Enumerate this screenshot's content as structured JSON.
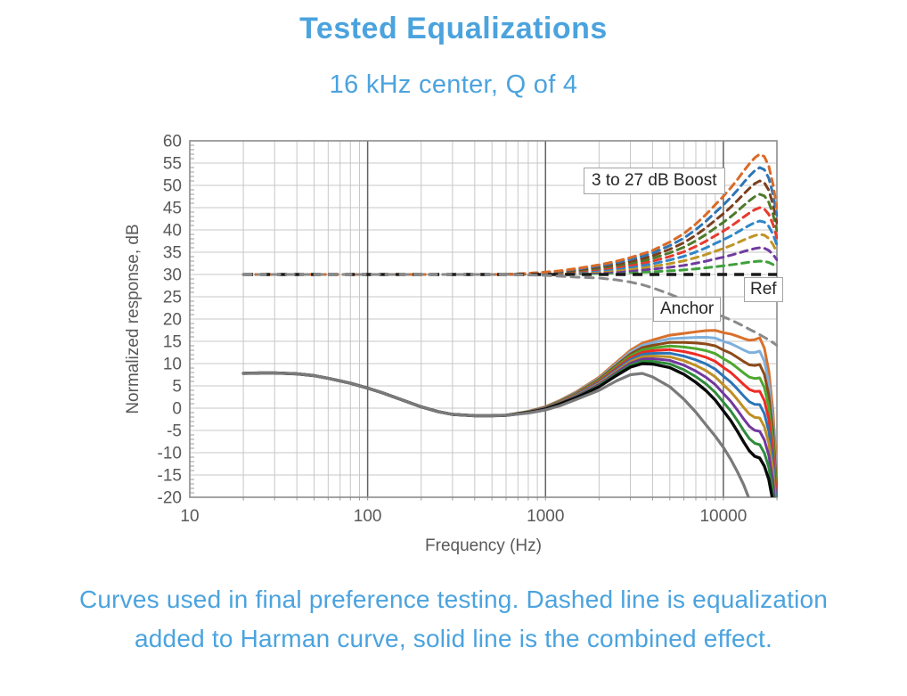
{
  "page": {
    "background": "#ffffff",
    "accent_blue": "#4BA3DE"
  },
  "header": {
    "title": "Tested Equalizations",
    "subtitle": "16 kHz center, Q of 4"
  },
  "caption": "Curves used in final preference testing. Dashed line is equalization added to Harman curve, solid line is the combined effect.",
  "chart_data": {
    "type": "line",
    "xlabel": "Frequency (Hz)",
    "ylabel": "Normalized response, dB",
    "xscale": "log",
    "xlim": [
      10,
      20000
    ],
    "ylim": [
      -20,
      60
    ],
    "x_ticks": [
      10,
      100,
      1000,
      10000
    ],
    "y_ticks": [
      60,
      55,
      50,
      45,
      40,
      35,
      30,
      25,
      20,
      15,
      10,
      5,
      0,
      -5,
      -10,
      -15,
      -20
    ],
    "minor_v_gridlines": [
      20,
      30,
      40,
      50,
      60,
      70,
      80,
      90,
      200,
      300,
      400,
      500,
      600,
      700,
      800,
      900,
      2000,
      3000,
      4000,
      5000,
      6000,
      7000,
      8000,
      9000,
      20000
    ],
    "major_v_gridlines": [
      100,
      1000,
      10000
    ],
    "annotations": [
      {
        "label": "3 to 27 dB Boost"
      },
      {
        "label": "Ref"
      },
      {
        "label": "Anchor"
      }
    ],
    "ref_level_db": 30,
    "frequencies": [
      20,
      25,
      30,
      40,
      50,
      60,
      80,
      100,
      120,
      150,
      200,
      250,
      300,
      400,
      500,
      600,
      800,
      1000,
      1200,
      1500,
      2000,
      2500,
      3000,
      3500,
      4000,
      5000,
      6000,
      7000,
      8000,
      9000,
      10000,
      11000,
      12000,
      13000,
      14000,
      15000,
      16000,
      17000,
      18000,
      19000,
      20000
    ],
    "harman_combined_db": [
      7.8,
      7.9,
      7.9,
      7.7,
      7.3,
      6.7,
      5.6,
      4.5,
      3.5,
      2.1,
      0.3,
      -0.8,
      -1.4,
      -1.7,
      -1.7,
      -1.6,
      -1.0,
      -0.2,
      0.9,
      2.4,
      4.8,
      7.3,
      9.2,
      10.0,
      9.9,
      9.1,
      7.6,
      5.8,
      3.9,
      1.8,
      -0.6,
      -2.8,
      -5.2,
      -7.6,
      -9.6,
      -10.8,
      -11.2,
      -13.0,
      -16.0,
      -21.0,
      -30.0
    ],
    "anchor_eq_db": [
      30,
      30,
      30,
      30,
      30,
      30,
      30,
      30,
      30,
      30,
      30,
      30,
      30,
      30,
      30,
      30,
      29.9,
      29.8,
      29.6,
      29.4,
      29.2,
      28.8,
      28.3,
      27.7,
      27.0,
      25.6,
      24.3,
      23.2,
      22.2,
      21.3,
      20.5,
      19.8,
      19.1,
      18.4,
      17.7,
      17.1,
      16.5,
      15.9,
      15.3,
      14.7,
      14.1
    ],
    "anchor_combined_db": [
      7.8,
      7.9,
      7.9,
      7.7,
      7.3,
      6.7,
      5.6,
      4.5,
      3.5,
      2.1,
      0.3,
      -0.8,
      -1.4,
      -1.7,
      -1.7,
      -1.6,
      -1.1,
      -0.4,
      0.5,
      2.0,
      4.0,
      6.1,
      7.5,
      7.8,
      7.0,
      4.8,
      2.0,
      -0.9,
      -3.8,
      -6.3,
      -8.8,
      -11.5,
      -14.3,
      -17.2,
      -20.5,
      -24.0,
      -27.5,
      -31.0,
      -34.5,
      -38.0,
      -41.0
    ],
    "boost_bell_fraction": [
      0,
      0,
      0,
      0,
      0,
      0,
      0,
      0,
      0,
      0,
      0,
      0,
      0,
      0,
      0,
      0,
      0.01,
      0.02,
      0.03,
      0.05,
      0.08,
      0.11,
      0.14,
      0.17,
      0.2,
      0.27,
      0.34,
      0.42,
      0.5,
      0.58,
      0.65,
      0.72,
      0.79,
      0.86,
      0.92,
      0.97,
      1.0,
      0.98,
      0.9,
      0.75,
      0.55
    ],
    "boosts": [
      {
        "gain_db": 27,
        "dashed_color": "#D96B28",
        "solid_color": "#D9702A"
      },
      {
        "gain_db": 24,
        "dashed_color": "#2E75B6",
        "solid_color": "#7EB0DC"
      },
      {
        "gain_db": 21,
        "dashed_color": "#7B3F1E",
        "solid_color": "#8C4A18"
      },
      {
        "gain_db": 18,
        "dashed_color": "#4E7A2C",
        "solid_color": "#4EA72E"
      },
      {
        "gain_db": 15,
        "dashed_color": "#E8392E",
        "solid_color": "#EE2B24"
      },
      {
        "gain_db": 12,
        "dashed_color": "#2E86C8",
        "solid_color": "#2B74B8"
      },
      {
        "gain_db": 9,
        "dashed_color": "#C09526",
        "solid_color": "#BF8F24"
      },
      {
        "gain_db": 6,
        "dashed_color": "#6F3C9E",
        "solid_color": "#71379F"
      },
      {
        "gain_db": 3,
        "dashed_color": "#3FA03C",
        "solid_color": "#2E8B3A"
      }
    ],
    "colors": {
      "ref_dashed": "#1a1a1a",
      "ref_solid": "#0a0a0a",
      "anchor_dashed": "#8a8a8a",
      "anchor_solid": "#7a7a7a",
      "grid_minor": "#c7c7c7",
      "grid_major": "#636363",
      "border": "#8c8c8c",
      "axis_text": "#595959"
    }
  }
}
